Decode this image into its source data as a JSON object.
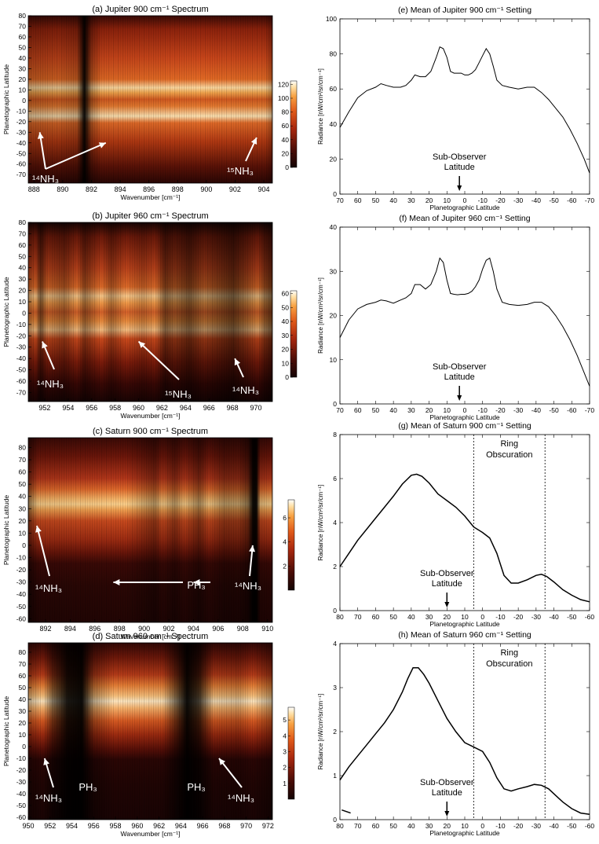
{
  "colors": {
    "line": "#000000",
    "annotation": "#ffffff",
    "heatmap_low": "#140404",
    "heatmap_mid": "#d2461a",
    "heatmap_high": "#ffffff"
  },
  "chart_data": [
    {
      "type": "heatmap",
      "title": "(a) Jupiter 900 cm⁻¹ Spectrum",
      "xlabel": "Wavenumber [cm⁻¹]",
      "ylabel": "Planetographic Latitude",
      "xlim": [
        887.6,
        904.6
      ],
      "ylim": [
        -78,
        80
      ],
      "xticks": [
        "888",
        "890",
        "892",
        "894",
        "896",
        "898",
        "900",
        "902",
        "904"
      ],
      "yticks": [
        "80",
        "70",
        "60",
        "50",
        "40",
        "30",
        "20",
        "10",
        "0",
        "-10",
        "-20",
        "-30",
        "-40",
        "-50",
        "-60",
        "-70"
      ],
      "colorbar_ticks": [
        "120",
        "100",
        "80",
        "60",
        "40",
        "20",
        "0"
      ],
      "colorbar_range": [
        0,
        125
      ],
      "bright_bands_latitude": [
        12,
        -15
      ],
      "dark_columns_wavenumber": [
        891.9
      ],
      "annotations": [
        {
          "label": "¹⁴NH₃",
          "target_wavenumbers": [
            888.4,
            893.0
          ]
        },
        {
          "label": "¹⁵NH₃",
          "target_wavenumbers": [
            903.5
          ]
        }
      ]
    },
    {
      "type": "heatmap",
      "title": "(b) Jupiter 960 cm⁻¹ Spectrum",
      "xlabel": "Wavenumber [cm⁻¹]",
      "ylabel": "Planetographic Latitude",
      "xlim": [
        950.6,
        971.4
      ],
      "ylim": [
        -78,
        80
      ],
      "xticks": [
        "952",
        "954",
        "956",
        "958",
        "960",
        "962",
        "964",
        "966",
        "968",
        "970"
      ],
      "yticks": [
        "80",
        "70",
        "60",
        "50",
        "40",
        "30",
        "20",
        "10",
        "0",
        "-10",
        "-20",
        "-30",
        "-40",
        "-50",
        "-60",
        "-70"
      ],
      "colorbar_ticks": [
        "60",
        "50",
        "40",
        "30",
        "20",
        "10",
        "0"
      ],
      "colorbar_range": [
        0,
        62
      ],
      "bright_bands_latitude": [
        12,
        -15
      ],
      "dark_columns_wavenumber": [
        951.8,
        962.4,
        968.2
      ],
      "annotations": [
        {
          "label": "¹⁴NH₃",
          "target_wavenumbers": [
            951.8
          ]
        },
        {
          "label": "¹⁵NH₃",
          "target_wavenumbers": [
            960.0
          ]
        },
        {
          "label": "¹⁴NH₃",
          "target_wavenumbers": [
            968.2
          ]
        }
      ]
    },
    {
      "type": "heatmap",
      "title": "(c) Saturn 900 cm⁻¹ Spectrum",
      "xlabel": "Wavenumber [cm⁻¹]",
      "ylabel": "Planetographic Latitude",
      "xlim": [
        890.6,
        910.4
      ],
      "ylim": [
        -63,
        88
      ],
      "xticks": [
        "892",
        "894",
        "896",
        "898",
        "900",
        "902",
        "904",
        "906",
        "908",
        "910"
      ],
      "yticks": [
        "80",
        "70",
        "60",
        "50",
        "40",
        "30",
        "20",
        "10",
        "0",
        "-10",
        "-20",
        "-30",
        "-40",
        "-50",
        "-60"
      ],
      "colorbar_ticks": [
        "6",
        "4",
        "2"
      ],
      "colorbar_range": [
        0,
        7.5
      ],
      "bright_bands_latitude": [
        36
      ],
      "dark_columns_wavenumber": [
        891.0,
        909.0
      ],
      "annotations": [
        {
          "label": "¹⁴NH₃",
          "target_wavenumbers": [
            891.3
          ]
        },
        {
          "label": "PH₃",
          "target_wavenumbers": [
            897.5,
            904.0
          ]
        },
        {
          "label": "¹⁴NH₃",
          "target_wavenumbers": [
            908.8
          ]
        }
      ]
    },
    {
      "type": "heatmap",
      "title": "(d) Saturn 960 cm⁻¹ Spectrum",
      "xlabel": "Wavenumber [cm⁻¹]",
      "ylabel": "Planetographic Latitude",
      "xlim": [
        950,
        972.4
      ],
      "ylim": [
        -62,
        88
      ],
      "xticks": [
        "950",
        "952",
        "954",
        "956",
        "958",
        "960",
        "962",
        "964",
        "966",
        "968",
        "970",
        "972"
      ],
      "yticks": [
        "80",
        "70",
        "60",
        "50",
        "40",
        "30",
        "20",
        "10",
        "0",
        "-10",
        "-20",
        "-30",
        "-40",
        "-50",
        "-60"
      ],
      "colorbar_ticks": [
        "5",
        "4",
        "3",
        "2",
        "1"
      ],
      "colorbar_range": [
        0,
        5.8
      ],
      "bright_bands_latitude": [
        36
      ],
      "dark_columns_wavenumber": [
        952.0,
        955.5,
        964.5
      ],
      "annotations": [
        {
          "label": "¹⁴NH₃",
          "target_wavenumbers": [
            951.5
          ]
        },
        {
          "label": "PH₃",
          "target_wavenumbers": [
            955.5
          ]
        },
        {
          "label": "PH₃",
          "target_wavenumbers": [
            964.5
          ]
        },
        {
          "label": "¹⁴NH₃",
          "target_wavenumbers": [
            967.5
          ]
        }
      ]
    },
    {
      "type": "line",
      "title": "(e) Mean of Jupiter 900 cm⁻¹ Setting",
      "xlabel": "Planetographic Latitude",
      "ylabel": "Radiance [nW/cm²/sr/cm⁻¹]",
      "xlim": [
        70,
        -70
      ],
      "ylim": [
        0,
        100
      ],
      "xticks": [
        "70",
        "60",
        "50",
        "40",
        "30",
        "20",
        "10",
        "0",
        "-10",
        "-20",
        "-30",
        "-40",
        "-50",
        "-60",
        "-70"
      ],
      "yticks": [
        "0",
        "20",
        "40",
        "60",
        "80",
        "100"
      ],
      "x": [
        70,
        65,
        60,
        55,
        50,
        47,
        44,
        40,
        36,
        33,
        30,
        28,
        25,
        22,
        19,
        16,
        14,
        12,
        10,
        8,
        6,
        4,
        2,
        0,
        -2,
        -4,
        -6,
        -8,
        -10,
        -12,
        -14,
        -16,
        -18,
        -21,
        -25,
        -30,
        -35,
        -39,
        -43,
        -47,
        -51,
        -55,
        -59,
        -63,
        -67,
        -70
      ],
      "y": [
        38,
        47,
        55,
        59,
        61,
        63,
        62,
        61,
        61,
        62,
        65,
        68,
        67,
        67,
        70,
        78,
        84,
        83,
        78,
        70,
        69,
        69,
        69,
        68,
        68,
        69,
        71,
        75,
        79,
        83,
        80,
        73,
        65,
        62,
        61,
        60,
        61,
        61,
        58,
        54,
        49,
        44,
        37,
        29,
        20,
        12
      ],
      "annotations": [
        {
          "label": "Sub-Observer Latitude",
          "x": 3
        }
      ]
    },
    {
      "type": "line",
      "title": "(f) Mean of Jupiter 960 cm⁻¹ Setting",
      "xlabel": "Planetographic Latitude",
      "ylabel": "Radiance [nW/cm²/sr/cm⁻¹]",
      "xlim": [
        70,
        -70
      ],
      "ylim": [
        0,
        40
      ],
      "xticks": [
        "70",
        "60",
        "50",
        "40",
        "30",
        "20",
        "10",
        "0",
        "-10",
        "-20",
        "-30",
        "-40",
        "-50",
        "-60",
        "-70"
      ],
      "yticks": [
        "0",
        "10",
        "20",
        "30",
        "40"
      ],
      "x": [
        70,
        65,
        60,
        55,
        50,
        47,
        44,
        40,
        36,
        33,
        30,
        28,
        25,
        22,
        19,
        16,
        14,
        12,
        10,
        8,
        6,
        4,
        2,
        0,
        -2,
        -4,
        -6,
        -8,
        -10,
        -12,
        -14,
        -16,
        -18,
        -21,
        -25,
        -30,
        -35,
        -39,
        -43,
        -47,
        -51,
        -55,
        -59,
        -63,
        -67,
        -70
      ],
      "y": [
        15,
        19,
        21.5,
        22.5,
        23,
        23.5,
        23.3,
        22.8,
        23.5,
        24,
        25,
        27,
        27,
        26,
        27,
        30,
        33,
        32,
        28,
        25,
        24.8,
        24.7,
        24.8,
        24.8,
        25,
        25.5,
        26.5,
        28,
        30.5,
        32.5,
        33,
        30,
        26,
        23,
        22.5,
        22.3,
        22.5,
        23,
        23,
        22,
        20,
        17.5,
        14.5,
        11,
        7,
        4
      ],
      "annotations": [
        {
          "label": "Sub-Observer Latitude",
          "x": 3
        }
      ]
    },
    {
      "type": "line",
      "title": "(g) Mean of Saturn 900 cm⁻¹ Setting",
      "xlabel": "Planetographic Latitude",
      "ylabel": "Radiance [nW/cm²/sr/cm⁻¹]",
      "xlim": [
        80,
        -60
      ],
      "ylim": [
        0,
        8
      ],
      "xticks": [
        "80",
        "70",
        "60",
        "50",
        "40",
        "30",
        "20",
        "10",
        "0",
        "-10",
        "-20",
        "-30",
        "-40",
        "-50",
        "-60"
      ],
      "yticks": [
        "0",
        "2",
        "4",
        "6",
        "8"
      ],
      "x": [
        80,
        75,
        70,
        65,
        60,
        55,
        50,
        45,
        40,
        37,
        34,
        30,
        25,
        20,
        15,
        10,
        5,
        0,
        -4,
        -8,
        -12,
        -16,
        -20,
        -25,
        -30,
        -33,
        -36,
        -40,
        -45,
        -50,
        -55,
        -60
      ],
      "y": [
        2.0,
        2.6,
        3.2,
        3.7,
        4.2,
        4.7,
        5.2,
        5.75,
        6.15,
        6.2,
        6.1,
        5.8,
        5.3,
        5.0,
        4.7,
        4.3,
        3.8,
        3.55,
        3.3,
        2.6,
        1.6,
        1.25,
        1.25,
        1.4,
        1.6,
        1.65,
        1.55,
        1.3,
        0.95,
        0.7,
        0.5,
        0.4
      ],
      "vlines": [
        5,
        -35
      ],
      "annotations": [
        {
          "label": "Ring Obscuration",
          "x_range": [
            5,
            -35
          ]
        },
        {
          "label": "Sub-Observer Latitude",
          "x": 20
        }
      ]
    },
    {
      "type": "line",
      "title": "(h) Mean of Saturn 960 cm⁻¹ Setting",
      "xlabel": "Planetographic Latitude",
      "ylabel": "Radiance [nW/cm²/sr/cm⁻¹]",
      "xlim": [
        80,
        -60
      ],
      "ylim": [
        0,
        4
      ],
      "xticks": [
        "80",
        "70",
        "60",
        "50",
        "40",
        "30",
        "20",
        "10",
        "0",
        "-10",
        "-20",
        "-30",
        "-40",
        "-50",
        "-60"
      ],
      "yticks": [
        "0",
        "1",
        "2",
        "3",
        "4"
      ],
      "x": [
        80,
        75,
        70,
        65,
        60,
        55,
        50,
        45,
        42,
        39,
        36,
        33,
        30,
        25,
        20,
        15,
        10,
        5,
        0,
        -4,
        -8,
        -12,
        -16,
        -20,
        -25,
        -29,
        -33,
        -37,
        -41,
        -45,
        -50,
        -55,
        -60
      ],
      "y": [
        0.9,
        1.2,
        1.45,
        1.7,
        1.95,
        2.2,
        2.5,
        2.9,
        3.2,
        3.45,
        3.45,
        3.3,
        3.1,
        2.7,
        2.3,
        2.0,
        1.75,
        1.65,
        1.55,
        1.3,
        0.95,
        0.7,
        0.65,
        0.7,
        0.75,
        0.8,
        0.78,
        0.7,
        0.55,
        0.4,
        0.25,
        0.15,
        0.12
      ],
      "extra_segment": {
        "x": [
          79,
          74
        ],
        "y": [
          0.22,
          0.15
        ]
      },
      "vlines": [
        5,
        -35
      ],
      "annotations": [
        {
          "label": "Ring Obscuration",
          "x_range": [
            5,
            -35
          ]
        },
        {
          "label": "Sub-Observer Latitude",
          "x": 20
        }
      ]
    }
  ]
}
